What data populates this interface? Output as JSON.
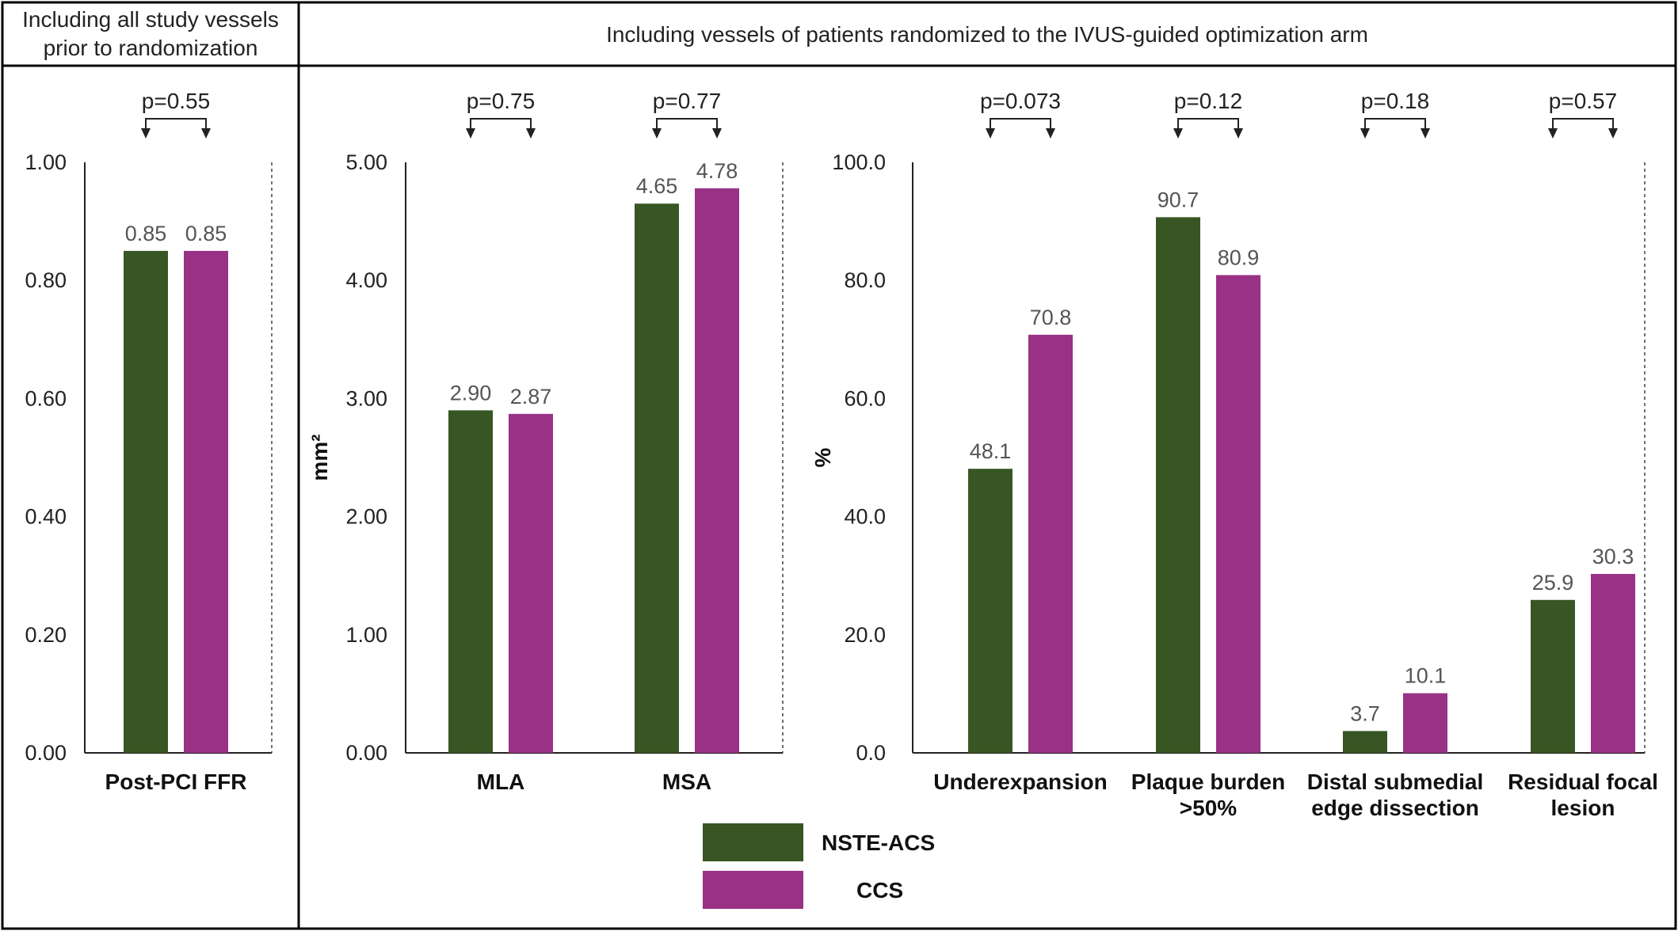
{
  "headers": {
    "left": [
      "Including all study vessels",
      "prior to randomization"
    ],
    "right": "Including vessels of patients randomized to the IVUS-guided optimization arm"
  },
  "colors": {
    "NSTE-ACS": "#375623",
    "CCS": "#993185"
  },
  "legend": [
    {
      "label": "NSTE-ACS",
      "color": "#375623"
    },
    {
      "label": "CCS",
      "color": "#993185"
    }
  ],
  "chart_data": [
    {
      "type": "bar",
      "categories": [
        [
          "Post-PCI FFR"
        ]
      ],
      "series": [
        {
          "name": "NSTE-ACS",
          "values": [
            0.85
          ],
          "labels": [
            "0.85"
          ]
        },
        {
          "name": "CCS",
          "values": [
            0.85
          ],
          "labels": [
            "0.85"
          ]
        }
      ],
      "p_values": [
        "p=0.55"
      ],
      "ylim": [
        0,
        1
      ],
      "yticks": [
        "0.00",
        "0.20",
        "0.40",
        "0.60",
        "0.80",
        "1.00"
      ],
      "ylabel": ""
    },
    {
      "type": "bar",
      "categories": [
        [
          "MLA"
        ],
        [
          "MSA"
        ]
      ],
      "series": [
        {
          "name": "NSTE-ACS",
          "values": [
            2.9,
            4.65
          ],
          "labels": [
            "2.90",
            "4.65"
          ]
        },
        {
          "name": "CCS",
          "values": [
            2.87,
            4.78
          ],
          "labels": [
            "2.87",
            "4.78"
          ]
        }
      ],
      "p_values": [
        "p=0.75",
        "p=0.77"
      ],
      "ylim": [
        0,
        5
      ],
      "yticks": [
        "0.00",
        "1.00",
        "2.00",
        "3.00",
        "4.00",
        "5.00"
      ],
      "ylabel": "mm²"
    },
    {
      "type": "bar",
      "categories": [
        [
          "Underexpansion"
        ],
        [
          "Plaque burden",
          ">50%"
        ],
        [
          "Distal submedial",
          "edge dissection"
        ],
        [
          "Residual focal",
          "lesion"
        ]
      ],
      "series": [
        {
          "name": "NSTE-ACS",
          "values": [
            48.1,
            90.7,
            3.7,
            25.9
          ],
          "labels": [
            "48.1",
            "90.7",
            "3.7",
            "25.9"
          ]
        },
        {
          "name": "CCS",
          "values": [
            70.8,
            80.9,
            10.1,
            30.3
          ],
          "labels": [
            "70.8",
            "80.9",
            "10.1",
            "30.3"
          ]
        }
      ],
      "p_values": [
        "p=0.073",
        "p=0.12",
        "p=0.18",
        "p=0.57"
      ],
      "ylim": [
        0,
        100
      ],
      "yticks": [
        "0.0",
        "20.0",
        "40.0",
        "60.0",
        "80.0",
        "100.0"
      ],
      "ylabel": "%"
    }
  ]
}
